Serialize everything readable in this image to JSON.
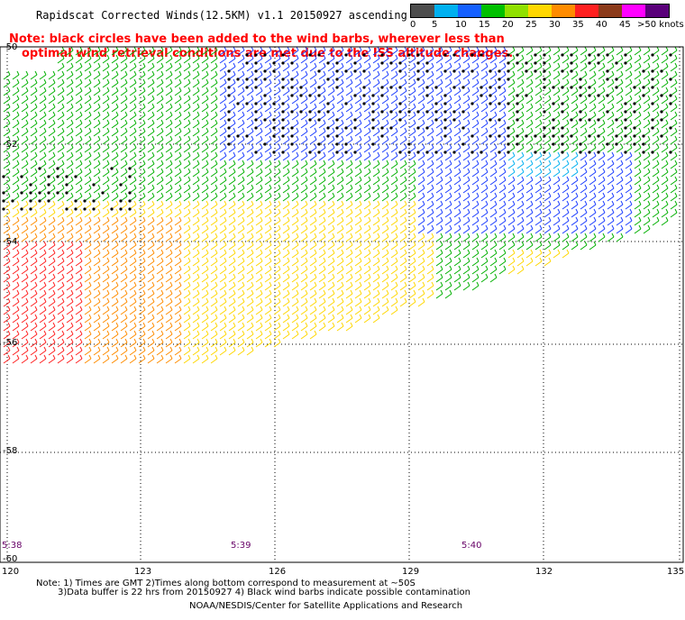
{
  "header": {
    "title": "Rapidscat Corrected Winds(12.5KM) v1.1 20150927 ascending",
    "note_line1": "Note: black circles have been added to the wind barbs, wherever less than",
    "note_line2": "optimal wind retrieval conditions are met due to the ISS altitude changes."
  },
  "legend": {
    "labels": [
      "0",
      "5",
      "10",
      "15",
      "20",
      "25",
      "30",
      "35",
      "40",
      "45",
      ">50 knots"
    ],
    "colors": [
      "#4d4d4d",
      "#00b0f0",
      "#1560ff",
      "#00c000",
      "#90e000",
      "#ffd700",
      "#ff8c00",
      "#ff2020",
      "#8b3a1a",
      "#ff00ff",
      "#5a007a"
    ]
  },
  "axes": {
    "lat_labels": [
      "-50",
      "-52",
      "-54",
      "-56",
      "-58",
      "-60"
    ],
    "lon_labels": [
      "120",
      "123",
      "126",
      "129",
      "132",
      "135"
    ]
  },
  "times": [
    "5:38",
    "5:39",
    "5:40"
  ],
  "footer": {
    "note_line1": "Note: 1) Times are GMT 2)Times along bottom correspond to measurement at ~50S",
    "note_line2": "3)Data buffer is 22 hrs from 20150927 4) Black wind barbs indicate possible contamination",
    "credit": "NOAA/NESDIS/Center for Satellite Applications and Research"
  },
  "map_data": {
    "lon_range": [
      120,
      135
    ],
    "lat_range": [
      -60,
      -50
    ],
    "wind_field_colors": {
      "calm_light": "#00b0f0",
      "blue": "#1a3cff",
      "green": "#00b000",
      "yellow": "#ffd700",
      "orange": "#ff8c00",
      "red": "#ff2020",
      "flag_dot": "#000000"
    }
  }
}
